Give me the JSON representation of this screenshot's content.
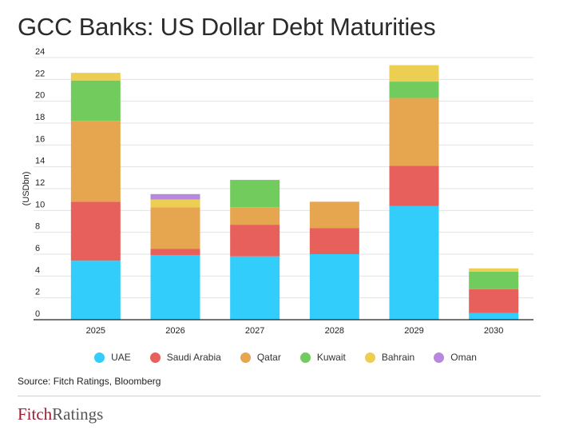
{
  "title": "GCC Banks: US Dollar Debt Maturities",
  "source": "Source: Fitch Ratings, Bloomberg",
  "logo": {
    "part1": "Fitch",
    "part2": "Ratings"
  },
  "colors": {
    "UAE": "#33cdfb",
    "Saudi Arabia": "#e8605b",
    "Qatar": "#e6a54f",
    "Kuwait": "#72cb5d",
    "Bahrain": "#ecce52",
    "Oman": "#b689df"
  },
  "chart_data": {
    "type": "bar",
    "stacked": true,
    "categories": [
      "2025",
      "2026",
      "2027",
      "2028",
      "2029",
      "2030"
    ],
    "ylabel": "(USDbn)",
    "xlabel": "",
    "ylim": [
      0,
      24
    ],
    "yticks": [
      0,
      2,
      4,
      6,
      8,
      10,
      12,
      14,
      16,
      18,
      20,
      22,
      24
    ],
    "grid": true,
    "legend_position": "bottom",
    "series": [
      {
        "name": "UAE",
        "values": [
          5.4,
          5.9,
          5.8,
          6.0,
          10.4,
          0.6
        ]
      },
      {
        "name": "Saudi Arabia",
        "values": [
          5.4,
          0.6,
          2.9,
          2.4,
          3.7,
          2.2
        ]
      },
      {
        "name": "Qatar",
        "values": [
          7.4,
          3.8,
          1.6,
          2.4,
          6.2,
          0.0
        ]
      },
      {
        "name": "Kuwait",
        "values": [
          3.7,
          0.0,
          2.5,
          0.0,
          1.5,
          1.6
        ]
      },
      {
        "name": "Bahrain",
        "values": [
          0.7,
          0.7,
          0.0,
          0.0,
          1.5,
          0.3
        ]
      },
      {
        "name": "Oman",
        "values": [
          0.0,
          0.5,
          0.0,
          0.0,
          0.0,
          0.0
        ]
      }
    ]
  }
}
